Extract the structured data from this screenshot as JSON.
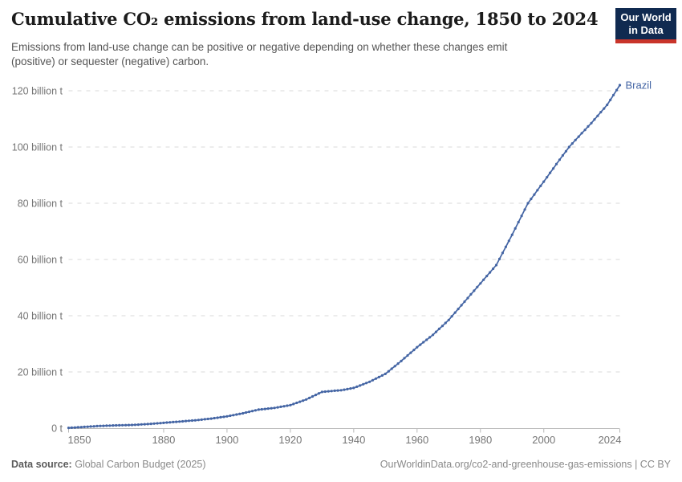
{
  "header": {
    "title": "Cumulative CO₂ emissions from land-use change, 1850 to 2024",
    "subtitle": "Emissions from land-use change can be positive or negative depending on whether these changes emit (positive) or sequester (negative) carbon.",
    "logo": {
      "line1": "Our World",
      "line2": "in Data",
      "bg_color": "#102a50",
      "accent_color": "#c9342a"
    }
  },
  "footer": {
    "source_label": "Data source:",
    "source_value": "Global Carbon Budget (2025)",
    "attribution": "OurWorldinData.org/co2-and-greenhouse-gas-emissions | CC BY"
  },
  "colors": {
    "series_blue": "#4465a4",
    "axis_text": "#757575",
    "gridline": "#dadada",
    "axis_line": "#b8b8b8"
  },
  "chart_data": {
    "type": "line",
    "title": "Cumulative CO₂ emissions from land-use change, 1850 to 2024",
    "ylabel": "Cumulative CO₂ emissions from land-use change",
    "unit": "billion tonnes (billion t)",
    "x_range": [
      1850,
      2024
    ],
    "y_range": [
      0,
      120
    ],
    "grid": "horizontal dashed gridlines, solid zero axis",
    "legend_position": "label at end of line",
    "marker_interval_years": 1,
    "x_ticks": [
      1850,
      1880,
      1900,
      1920,
      1940,
      1960,
      1980,
      2000,
      2024
    ],
    "y_ticks": [
      {
        "value": 0,
        "label": "0 t"
      },
      {
        "value": 20,
        "label": "20 billion t"
      },
      {
        "value": 40,
        "label": "40 billion t"
      },
      {
        "value": 60,
        "label": "60 billion t"
      },
      {
        "value": 80,
        "label": "80 billion t"
      },
      {
        "value": 100,
        "label": "100 billion t"
      },
      {
        "value": 120,
        "label": "120 billion t"
      }
    ],
    "series": [
      {
        "name": "Brazil",
        "color": "#4465a4",
        "anchor_years": [
          1850,
          1855,
          1860,
          1865,
          1870,
          1875,
          1880,
          1885,
          1890,
          1895,
          1900,
          1905,
          1910,
          1915,
          1920,
          1925,
          1930,
          1933,
          1936,
          1940,
          1945,
          1950,
          1955,
          1960,
          1965,
          1970,
          1975,
          1980,
          1985,
          1990,
          1995,
          2000,
          2005,
          2008,
          2010,
          2015,
          2020,
          2024
        ],
        "anchor_values": [
          0.1,
          0.45,
          0.8,
          1.0,
          1.15,
          1.45,
          1.9,
          2.35,
          2.8,
          3.4,
          4.2,
          5.3,
          6.6,
          7.2,
          8.2,
          10.2,
          12.9,
          13.2,
          13.5,
          14.3,
          16.5,
          19.3,
          23.9,
          28.8,
          33.2,
          38.5,
          45.0,
          51.5,
          58.0,
          68.8,
          80.0,
          87.7,
          95.5,
          100.0,
          102.5,
          108.5,
          115.0,
          122.0
        ],
        "last_value_label": "Brazil"
      }
    ]
  }
}
